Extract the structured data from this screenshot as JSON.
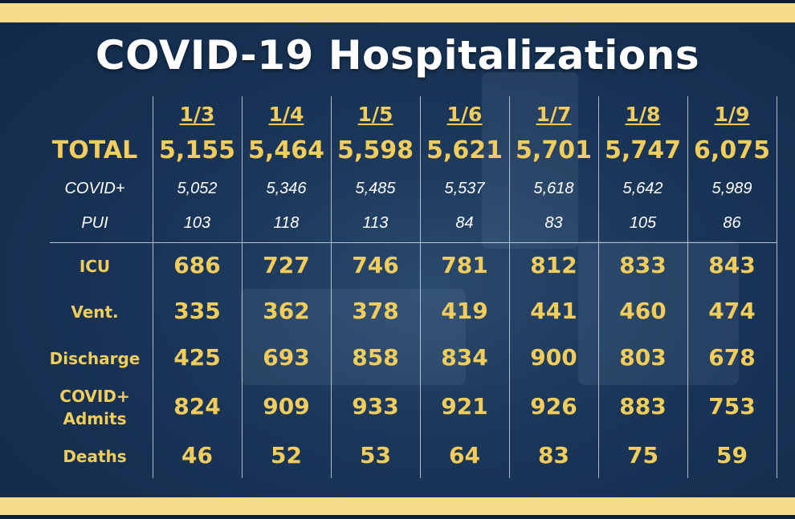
{
  "title": "COVID-19 Hospitalizations",
  "chart_data": {
    "type": "table",
    "columns": [
      "1/3",
      "1/4",
      "1/5",
      "1/6",
      "1/7",
      "1/8",
      "1/9"
    ],
    "total_row": {
      "label": "TOTAL",
      "values": [
        "5,155",
        "5,464",
        "5,598",
        "5,621",
        "5,701",
        "5,747",
        "6,075"
      ]
    },
    "sub_rows": [
      {
        "label": "COVID+",
        "values": [
          "5,052",
          "5,346",
          "5,485",
          "5,537",
          "5,618",
          "5,642",
          "5,989"
        ]
      },
      {
        "label": "PUI",
        "values": [
          "103",
          "118",
          "113",
          "84",
          "83",
          "105",
          "86"
        ]
      }
    ],
    "rows": [
      {
        "label": "ICU",
        "values": [
          "686",
          "727",
          "746",
          "781",
          "812",
          "833",
          "843"
        ]
      },
      {
        "label": "Vent.",
        "values": [
          "335",
          "362",
          "378",
          "419",
          "441",
          "460",
          "474"
        ]
      },
      {
        "label": "Discharge",
        "values": [
          "425",
          "693",
          "858",
          "834",
          "900",
          "803",
          "678"
        ]
      },
      {
        "label": "COVID+\nAdmits",
        "values": [
          "824",
          "909",
          "933",
          "921",
          "926",
          "883",
          "753"
        ]
      },
      {
        "label": "Deaths",
        "values": [
          "46",
          "52",
          "53",
          "64",
          "83",
          "75",
          "59"
        ]
      }
    ]
  },
  "colors": {
    "accent": "#f3cd5c",
    "stripe": "#f5dd8c",
    "background": "#1a3658",
    "text": "#ffffff"
  }
}
